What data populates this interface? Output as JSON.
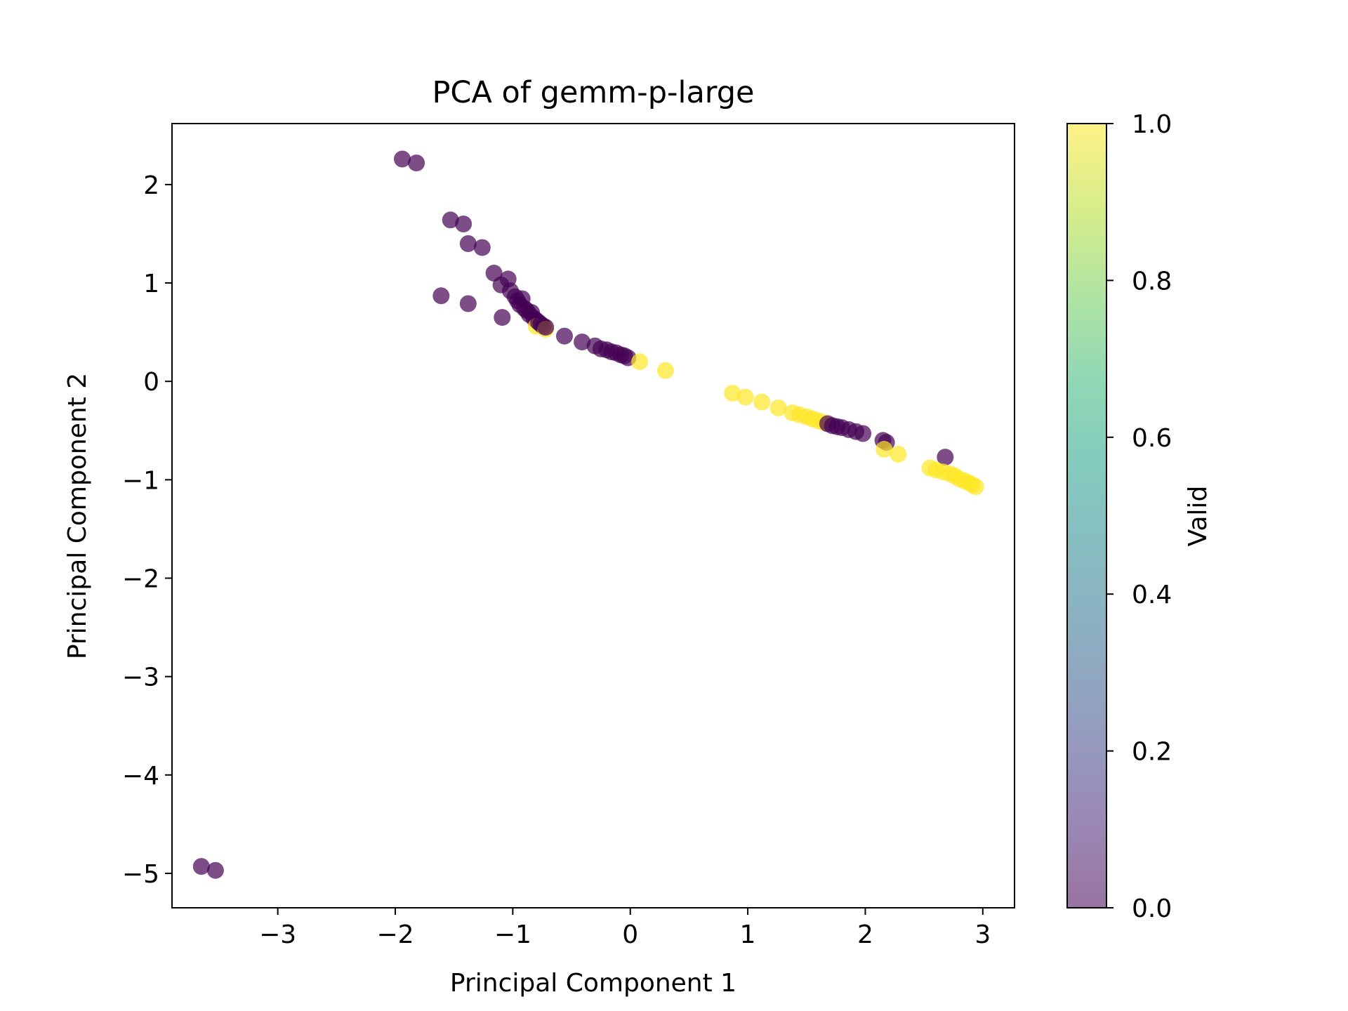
{
  "chart_data": {
    "type": "scatter",
    "title": "PCA of gemm-p-large",
    "xlabel": "Principal Component 1",
    "ylabel": "Principal Component 2",
    "xlim": [
      -3.9,
      3.27
    ],
    "ylim": [
      -5.35,
      2.62
    ],
    "xticks": [
      -3,
      -2,
      -1,
      0,
      1,
      2,
      3
    ],
    "yticks": [
      -5,
      -4,
      -3,
      -2,
      -1,
      0,
      1,
      2
    ],
    "xtick_labels": [
      "−3",
      "−2",
      "−1",
      "0",
      "1",
      "2",
      "3"
    ],
    "ytick_labels": [
      "−5",
      "−4",
      "−3",
      "−2",
      "−1",
      "0",
      "1",
      "2"
    ],
    "colorbar": {
      "label": "Valid",
      "min": 0.0,
      "max": 1.0,
      "ticks": [
        0.0,
        0.2,
        0.4,
        0.6,
        0.8,
        1.0
      ],
      "tick_labels": [
        "0.0",
        "0.2",
        "0.4",
        "0.6",
        "0.8",
        "1.0"
      ],
      "colormap": "viridis"
    },
    "point_alpha": 0.7,
    "colors": {
      "valid_0": "#440154",
      "valid_1": "#fde725"
    },
    "points": [
      {
        "x": -3.65,
        "y": -4.93,
        "valid": 0
      },
      {
        "x": -3.53,
        "y": -4.97,
        "valid": 0
      },
      {
        "x": -1.94,
        "y": 2.26,
        "valid": 0
      },
      {
        "x": -1.82,
        "y": 2.22,
        "valid": 0
      },
      {
        "x": -1.53,
        "y": 1.64,
        "valid": 0
      },
      {
        "x": -1.42,
        "y": 1.6,
        "valid": 0
      },
      {
        "x": -1.38,
        "y": 1.4,
        "valid": 0
      },
      {
        "x": -1.26,
        "y": 1.36,
        "valid": 0
      },
      {
        "x": -1.61,
        "y": 0.87,
        "valid": 0
      },
      {
        "x": -1.38,
        "y": 0.79,
        "valid": 0
      },
      {
        "x": -1.16,
        "y": 1.1,
        "valid": 0
      },
      {
        "x": -1.09,
        "y": 0.65,
        "valid": 0
      },
      {
        "x": -1.1,
        "y": 0.98,
        "valid": 0
      },
      {
        "x": -1.04,
        "y": 1.04,
        "valid": 0
      },
      {
        "x": -1.02,
        "y": 0.92,
        "valid": 0
      },
      {
        "x": -0.98,
        "y": 0.86,
        "valid": 0
      },
      {
        "x": -0.96,
        "y": 0.82,
        "valid": 0
      },
      {
        "x": -0.94,
        "y": 0.78,
        "valid": 0
      },
      {
        "x": -0.92,
        "y": 0.84,
        "valid": 0
      },
      {
        "x": -0.9,
        "y": 0.74,
        "valid": 0
      },
      {
        "x": -0.88,
        "y": 0.72,
        "valid": 0
      },
      {
        "x": -0.86,
        "y": 0.68,
        "valid": 0
      },
      {
        "x": -0.84,
        "y": 0.7,
        "valid": 0
      },
      {
        "x": -0.82,
        "y": 0.64,
        "valid": 0
      },
      {
        "x": -0.8,
        "y": 0.62,
        "valid": 0
      },
      {
        "x": -0.8,
        "y": 0.56,
        "valid": 1
      },
      {
        "x": -0.78,
        "y": 0.6,
        "valid": 0
      },
      {
        "x": -0.76,
        "y": 0.58,
        "valid": 0
      },
      {
        "x": -0.74,
        "y": 0.56,
        "valid": 0
      },
      {
        "x": -0.72,
        "y": 0.53,
        "valid": 1
      },
      {
        "x": -0.72,
        "y": 0.55,
        "valid": 0
      },
      {
        "x": -0.56,
        "y": 0.46,
        "valid": 0
      },
      {
        "x": -0.41,
        "y": 0.4,
        "valid": 0
      },
      {
        "x": -0.3,
        "y": 0.36,
        "valid": 0
      },
      {
        "x": -0.25,
        "y": 0.33,
        "valid": 0
      },
      {
        "x": -0.2,
        "y": 0.32,
        "valid": 0
      },
      {
        "x": -0.16,
        "y": 0.3,
        "valid": 0
      },
      {
        "x": -0.12,
        "y": 0.29,
        "valid": 0
      },
      {
        "x": -0.08,
        "y": 0.27,
        "valid": 0
      },
      {
        "x": -0.05,
        "y": 0.26,
        "valid": 0
      },
      {
        "x": -0.02,
        "y": 0.24,
        "valid": 0
      },
      {
        "x": 0.08,
        "y": 0.2,
        "valid": 1
      },
      {
        "x": 0.3,
        "y": 0.11,
        "valid": 1
      },
      {
        "x": 0.87,
        "y": -0.12,
        "valid": 1
      },
      {
        "x": 0.98,
        "y": -0.16,
        "valid": 1
      },
      {
        "x": 1.12,
        "y": -0.21,
        "valid": 1
      },
      {
        "x": 1.26,
        "y": -0.27,
        "valid": 1
      },
      {
        "x": 1.38,
        "y": -0.32,
        "valid": 1
      },
      {
        "x": 1.44,
        "y": -0.34,
        "valid": 1
      },
      {
        "x": 1.5,
        "y": -0.36,
        "valid": 1
      },
      {
        "x": 1.55,
        "y": -0.38,
        "valid": 1
      },
      {
        "x": 1.6,
        "y": -0.4,
        "valid": 1
      },
      {
        "x": 1.65,
        "y": -0.42,
        "valid": 1
      },
      {
        "x": 1.68,
        "y": -0.43,
        "valid": 0
      },
      {
        "x": 1.72,
        "y": -0.45,
        "valid": 0
      },
      {
        "x": 1.76,
        "y": -0.46,
        "valid": 0
      },
      {
        "x": 1.8,
        "y": -0.47,
        "valid": 0
      },
      {
        "x": 1.86,
        "y": -0.49,
        "valid": 0
      },
      {
        "x": 1.92,
        "y": -0.51,
        "valid": 0
      },
      {
        "x": 1.98,
        "y": -0.53,
        "valid": 0
      },
      {
        "x": 2.15,
        "y": -0.6,
        "valid": 0
      },
      {
        "x": 2.18,
        "y": -0.62,
        "valid": 0
      },
      {
        "x": 2.16,
        "y": -0.69,
        "valid": 1
      },
      {
        "x": 2.28,
        "y": -0.74,
        "valid": 1
      },
      {
        "x": 2.68,
        "y": -0.77,
        "valid": 0
      },
      {
        "x": 2.55,
        "y": -0.88,
        "valid": 1
      },
      {
        "x": 2.6,
        "y": -0.9,
        "valid": 1
      },
      {
        "x": 2.66,
        "y": -0.92,
        "valid": 1
      },
      {
        "x": 2.72,
        "y": -0.94,
        "valid": 1
      },
      {
        "x": 2.76,
        "y": -0.96,
        "valid": 1
      },
      {
        "x": 2.8,
        "y": -0.99,
        "valid": 1
      },
      {
        "x": 2.84,
        "y": -1.01,
        "valid": 1
      },
      {
        "x": 2.88,
        "y": -1.03,
        "valid": 1
      },
      {
        "x": 2.91,
        "y": -1.05,
        "valid": 1
      },
      {
        "x": 2.94,
        "y": -1.07,
        "valid": 1
      }
    ]
  }
}
